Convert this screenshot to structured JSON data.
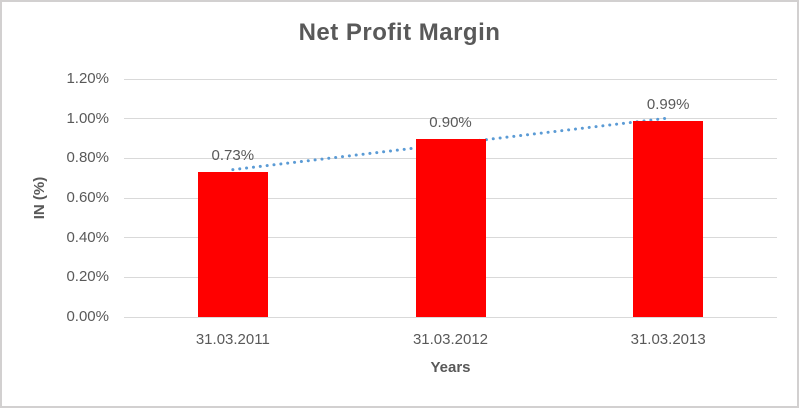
{
  "chart_data": {
    "type": "bar",
    "title": "Net Profit Margin",
    "categories": [
      "31.03.2011",
      "31.03.2012",
      "31.03.2013"
    ],
    "values": [
      0.73,
      0.9,
      0.99
    ],
    "data_labels": [
      "0.73%",
      "0.90%",
      "0.99%"
    ],
    "xlabel": "Years",
    "ylabel": "IN (%)",
    "ylim": [
      0,
      1.2
    ],
    "ytick_step": 0.2,
    "ytick_labels": [
      "0.00%",
      "0.20%",
      "0.40%",
      "0.60%",
      "0.80%",
      "1.00%",
      "1.20%"
    ],
    "grid": true,
    "legend": "none",
    "bar_color": "#ff0000",
    "text_color": "#595959",
    "grid_color": "#d9d9d9",
    "trendline": {
      "style": "dotted",
      "color": "#5b9bd5",
      "start_value": 0.743,
      "end_value": 1.003
    }
  }
}
